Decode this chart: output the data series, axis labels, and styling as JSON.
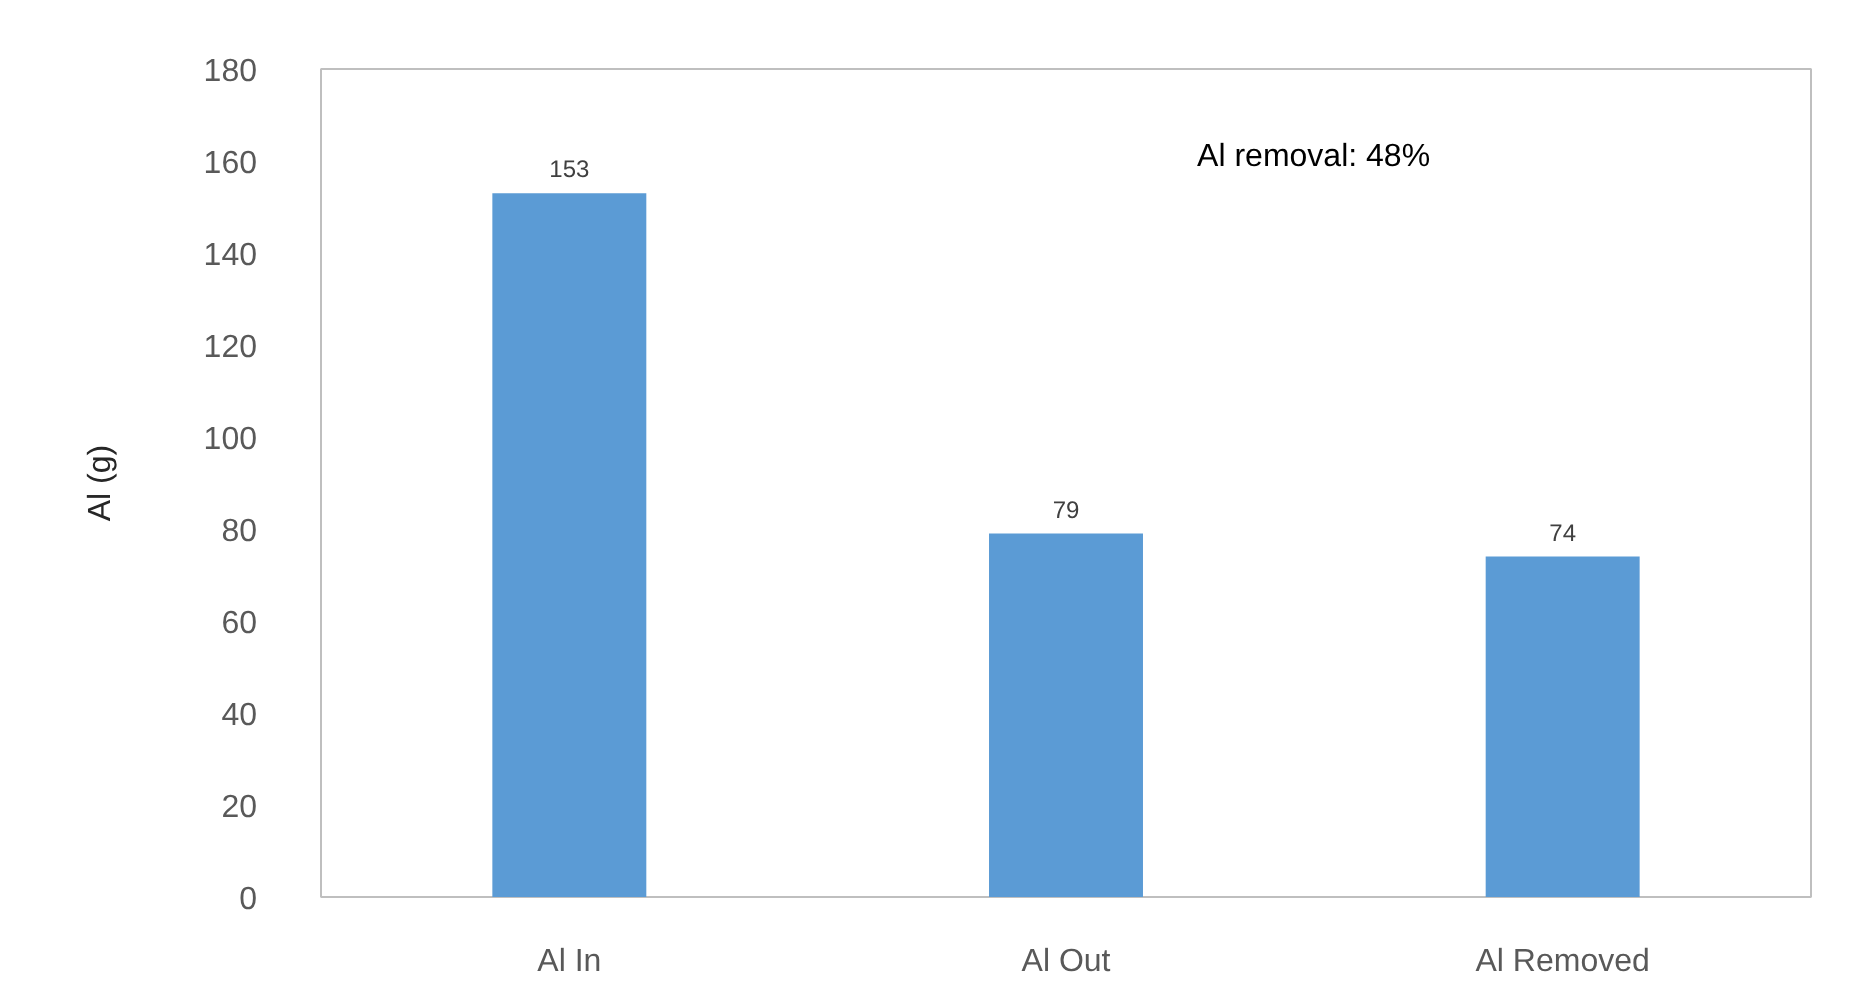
{
  "chart_data": {
    "type": "bar",
    "categories": [
      "Al In",
      "Al Out",
      "Al Removed"
    ],
    "values": [
      153,
      79,
      74
    ],
    "color": "#5b9bd5",
    "ylabel": "Al (g)",
    "ylim": [
      0,
      180
    ],
    "yticks": [
      0,
      20,
      40,
      60,
      80,
      100,
      120,
      140,
      160,
      180
    ],
    "grid": false,
    "data_labels": true,
    "annotations": [
      "Al removal: 48%"
    ]
  }
}
